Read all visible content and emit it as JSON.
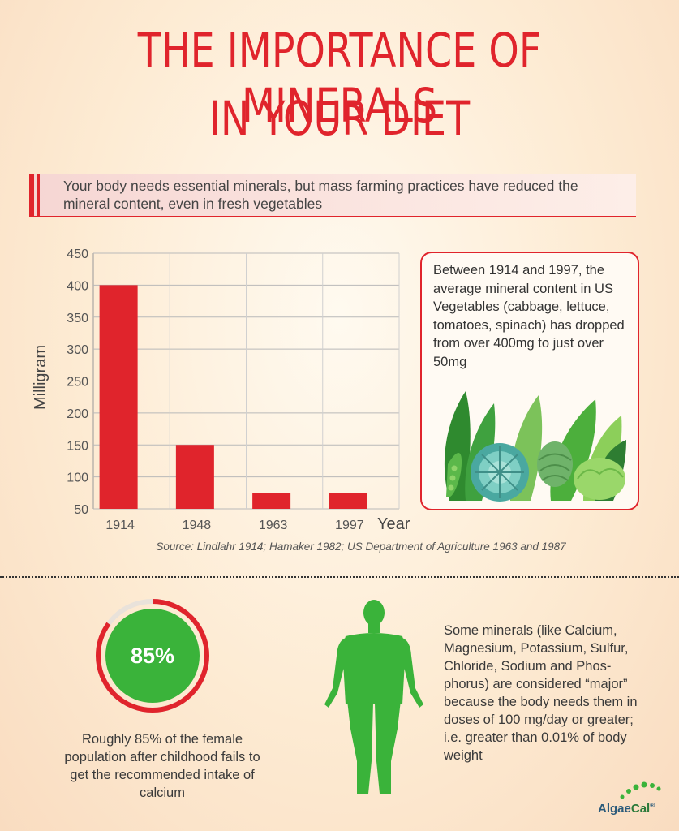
{
  "title": {
    "line1": "THE IMPORTANCE OF MINERALS",
    "line2": "IN YOUR DIET"
  },
  "intro": "Your body needs essential minerals, but mass farming practices have reduced the mineral content, even in fresh vegetables",
  "colors": {
    "accent": "#e0242c",
    "green": "#3ab33a",
    "text": "#3a3a3a"
  },
  "chart_data": {
    "type": "bar",
    "categories": [
      "1914",
      "1948",
      "1963",
      "1997"
    ],
    "values": [
      400,
      150,
      75,
      75
    ],
    "title": "",
    "xlabel": "Year",
    "ylabel": "Milligram",
    "ylim": [
      50,
      450
    ],
    "yticks": [
      50,
      100,
      150,
      200,
      250,
      300,
      350,
      400,
      450
    ],
    "grid": true,
    "bar_color": "#e0242c"
  },
  "source": "Source: Lindlahr 1914; Hamaker 1982; US Department of Agriculture 1963 and 1987",
  "infobox": {
    "text": "Between 1914 and 1997, the average mineral content in US Vegetables (cabbage, lettuce, tomatoes, spinach) has dropped from over 400mg to just over 50mg",
    "illustration": "vegetables-illustration"
  },
  "stat": {
    "value": "85%",
    "ring_fraction": 0.85,
    "caption": "Roughly 85% of the female population after childhood fails to get the recommended intake of calcium"
  },
  "major_minerals": {
    "figure": "human-figure-icon",
    "text": "Some minerals (like Calcium, Magnesium, Potassium, Sulfur, Chloride, Sodium and Phos-phorus) are considered “major” because the body needs them in doses of 100 mg/day or greater; i.e. greater than 0.01% of body weight"
  },
  "brand": {
    "name_part1": "Algae",
    "name_part2": "Cal",
    "mark": "®"
  }
}
